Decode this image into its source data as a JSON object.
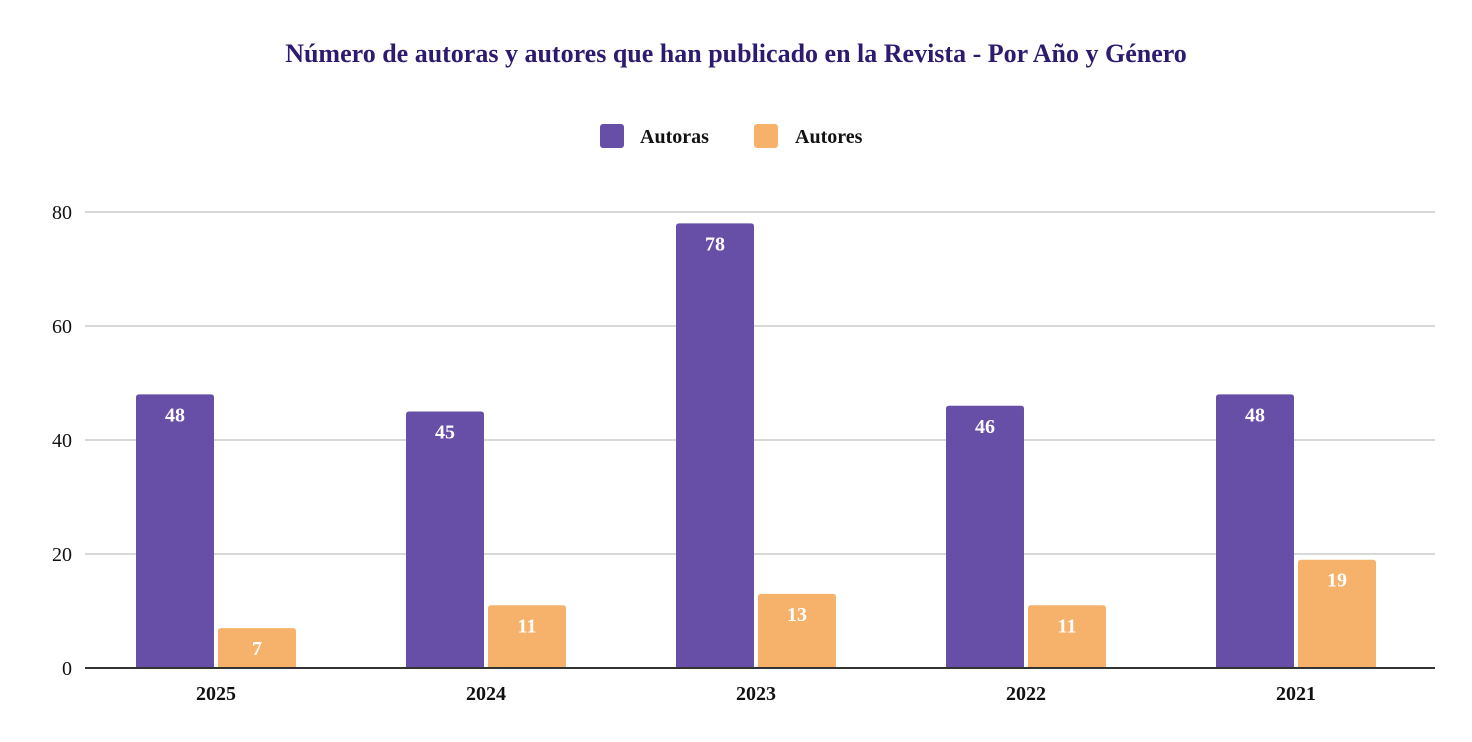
{
  "chart_data": {
    "type": "bar",
    "title": "Número de autoras y autores que han publicado en la Revista - Por Año y Género",
    "xlabel": "",
    "ylabel": "",
    "categories": [
      "2025",
      "2024",
      "2023",
      "2022",
      "2021"
    ],
    "series": [
      {
        "name": "Autoras",
        "color": "#674ea7",
        "values": [
          48,
          45,
          78,
          46,
          48
        ]
      },
      {
        "name": "Autores",
        "color": "#f6b26b",
        "values": [
          7,
          11,
          13,
          11,
          19
        ]
      }
    ],
    "ylim": [
      0,
      80
    ],
    "yticks": [
      0,
      20,
      40,
      60,
      80
    ],
    "grid": true,
    "legend_position": "top-center",
    "data_labels": true
  }
}
